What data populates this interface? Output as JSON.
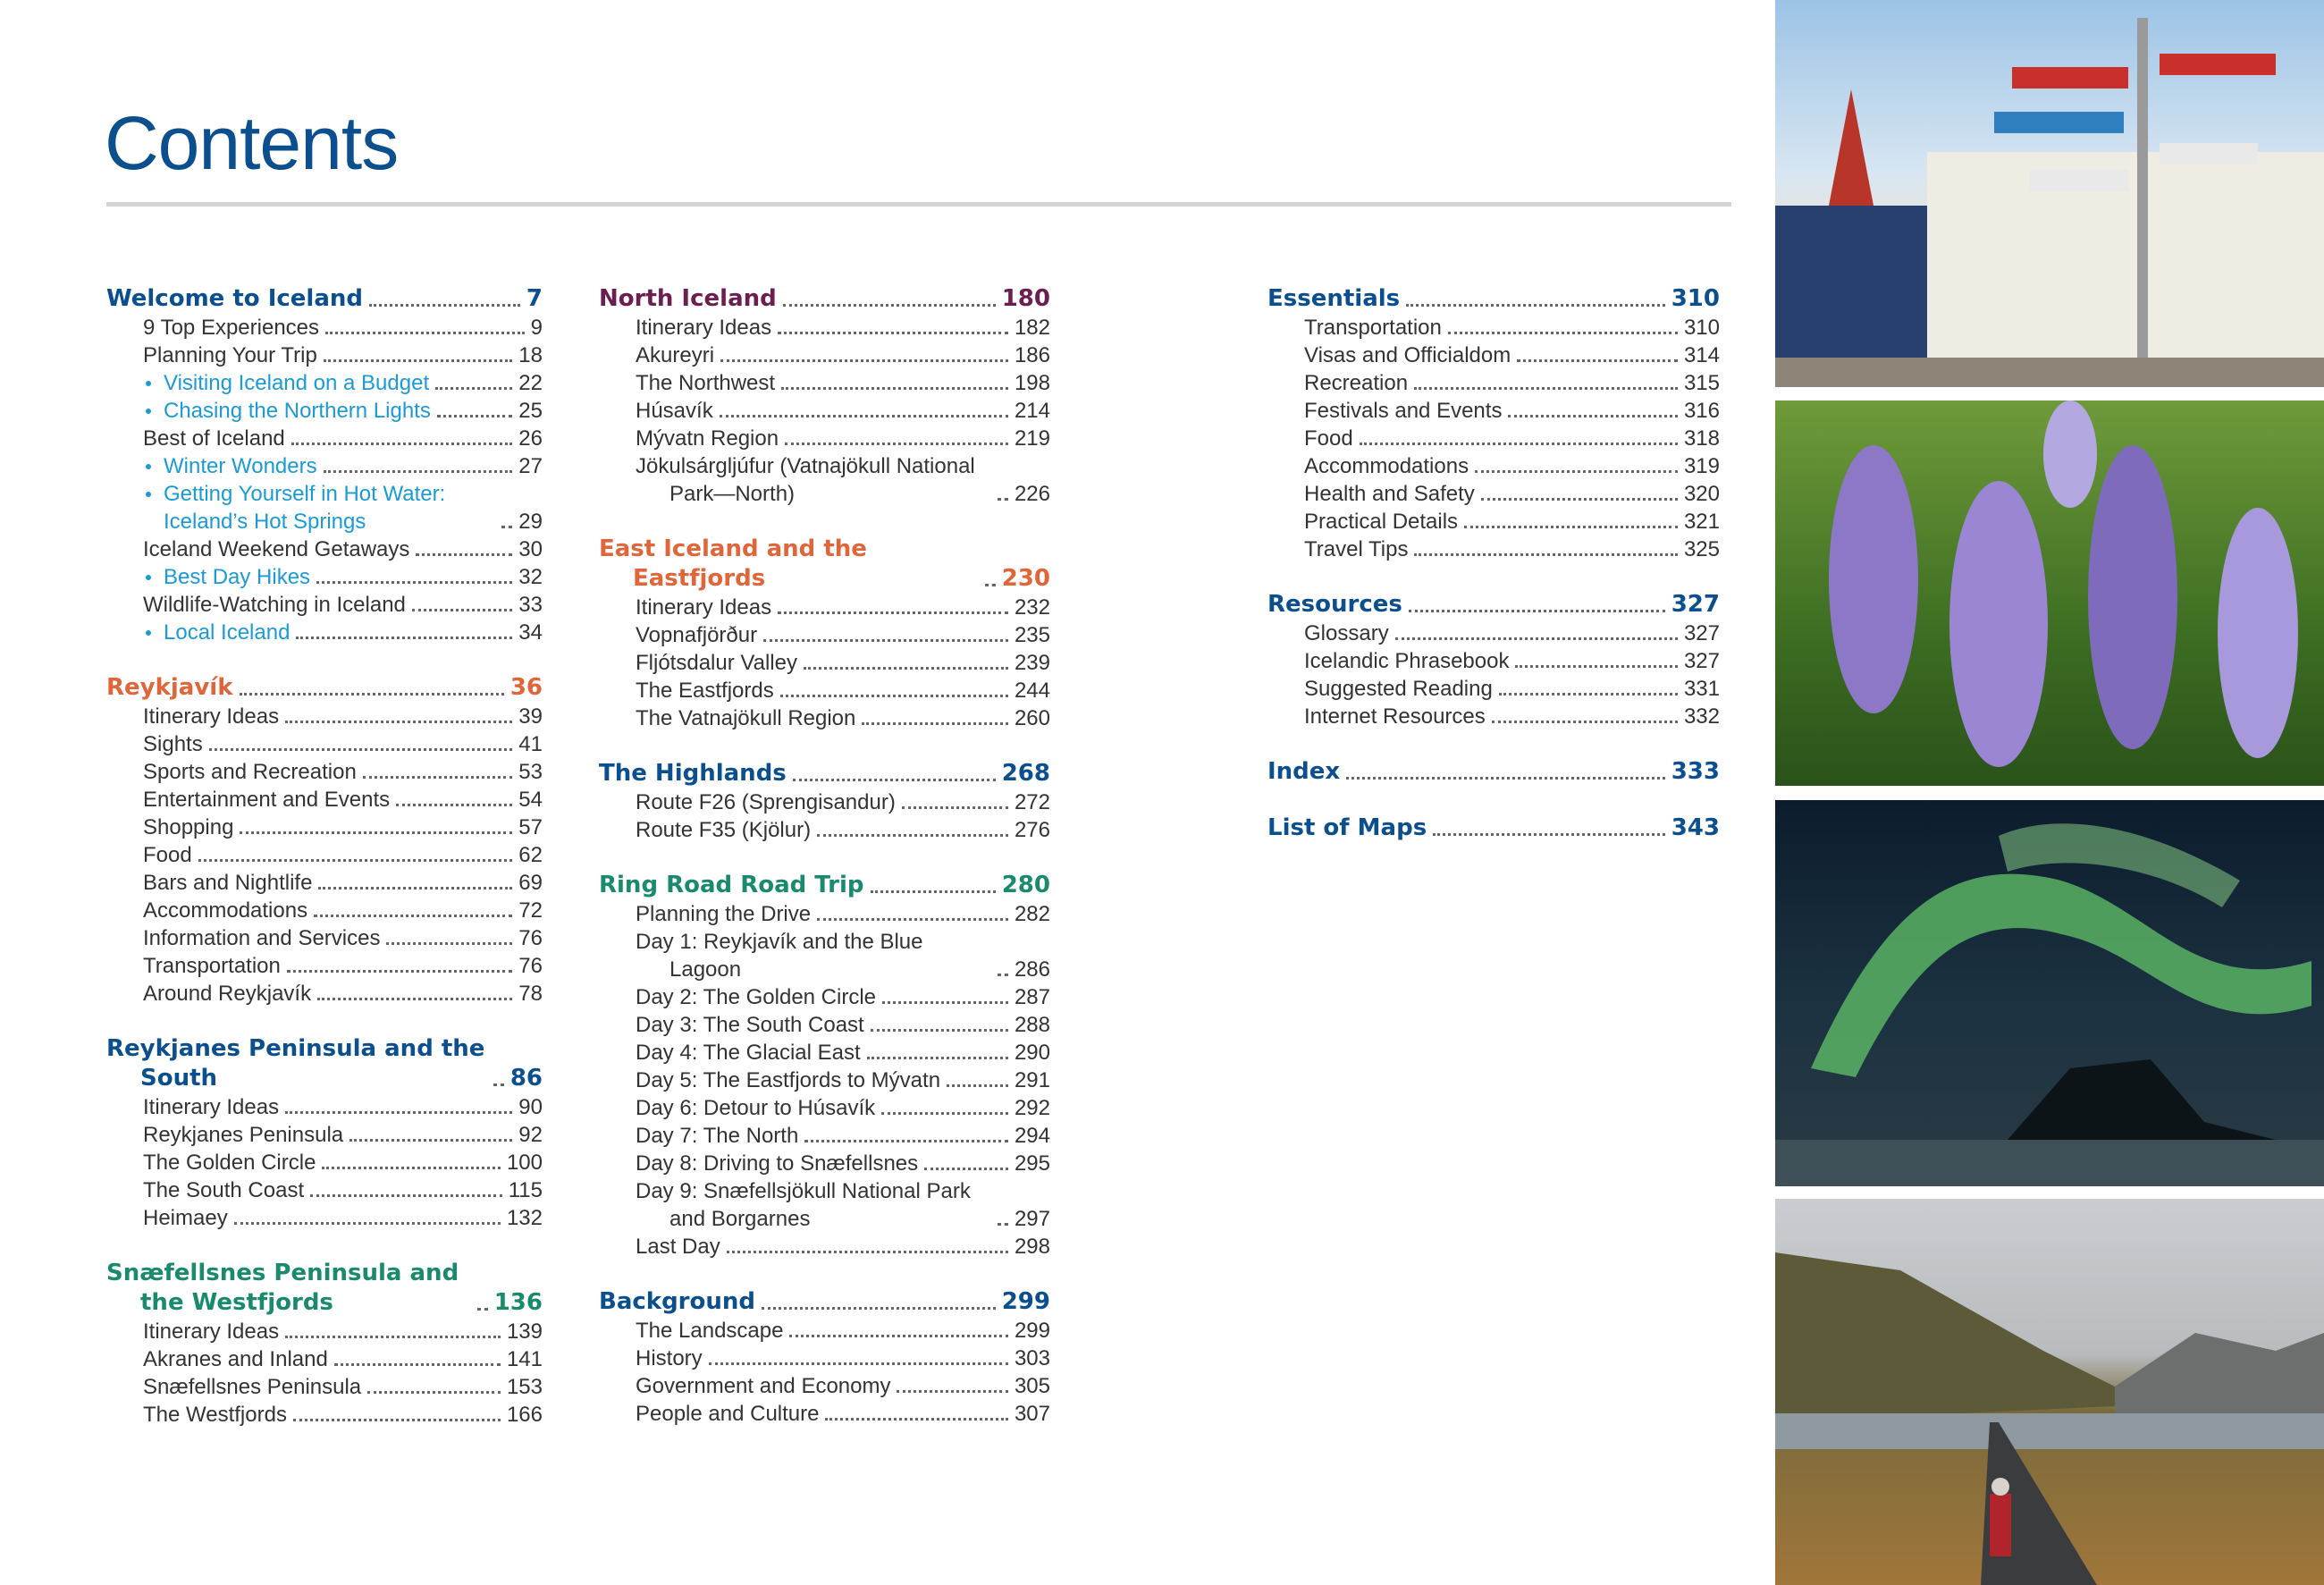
{
  "title": "Contents",
  "columns": [
    {
      "sections": [
        {
          "title": "Welcome to Iceland",
          "page": "7",
          "color": "#0b4f8e",
          "entries": [
            {
              "text": "9 Top Experiences",
              "page": "9"
            },
            {
              "text": "Planning Your Trip",
              "page": "18"
            },
            {
              "text": "Visiting Iceland on a Budget",
              "page": "22",
              "color": "#1a9ad6"
            },
            {
              "text": "Chasing the Northern Lights",
              "page": "25",
              "color": "#1a9ad6"
            },
            {
              "text": "Best of Iceland",
              "page": "26"
            },
            {
              "text": "Winter Wonders",
              "page": "27",
              "color": "#1a9ad6"
            },
            {
              "text": "Getting Yourself in Hot Water: Iceland’s Hot Springs",
              "page": "29",
              "color": "#1a9ad6"
            },
            {
              "text": "Iceland Weekend Getaways",
              "page": "30"
            },
            {
              "text": "Best Day Hikes",
              "page": "32",
              "color": "#1a9ad6"
            },
            {
              "text": "Wildlife-Watching in Iceland",
              "page": "33"
            },
            {
              "text": "Local Iceland",
              "page": "34",
              "color": "#1a9ad6"
            }
          ]
        },
        {
          "title": "Reykjavík",
          "page": "36",
          "color": "#e0663a",
          "entries": [
            {
              "text": "Itinerary Ideas",
              "page": "39"
            },
            {
              "text": "Sights",
              "page": "41"
            },
            {
              "text": "Sports and Recreation",
              "page": "53"
            },
            {
              "text": "Entertainment and Events",
              "page": "54"
            },
            {
              "text": "Shopping",
              "page": "57"
            },
            {
              "text": "Food",
              "page": "62"
            },
            {
              "text": "Bars and Nightlife",
              "page": "69"
            },
            {
              "text": "Accommodations",
              "page": "72"
            },
            {
              "text": "Information and Services",
              "page": "76"
            },
            {
              "text": "Transportation",
              "page": "76"
            },
            {
              "text": "Around Reykjavík",
              "page": "78"
            }
          ]
        },
        {
          "title": "Reykjanes Peninsula and the South",
          "page": "86",
          "color": "#0b4f8e",
          "entries": [
            {
              "text": "Itinerary Ideas",
              "page": "90"
            },
            {
              "text": "Reykjanes Peninsula",
              "page": "92"
            },
            {
              "text": "The Golden Circle",
              "page": "100"
            },
            {
              "text": "The South Coast",
              "page": "115"
            },
            {
              "text": "Heimaey",
              "page": "132"
            }
          ]
        },
        {
          "title": "Snæfellsnes Peninsula and the Westfjords",
          "page": "136",
          "color": "#1a8a6e",
          "entries": [
            {
              "text": "Itinerary Ideas",
              "page": "139"
            },
            {
              "text": "Akranes and Inland",
              "page": "141"
            },
            {
              "text": "Snæfellsnes Peninsula",
              "page": "153"
            },
            {
              "text": "The Westfjords",
              "page": "166"
            }
          ]
        }
      ]
    },
    {
      "sections": [
        {
          "title": "North Iceland",
          "page": "180",
          "color": "#6b1e4f",
          "entries": [
            {
              "text": "Itinerary Ideas",
              "page": "182"
            },
            {
              "text": "Akureyri",
              "page": "186"
            },
            {
              "text": "The Northwest",
              "page": "198"
            },
            {
              "text": "Húsavík",
              "page": "214"
            },
            {
              "text": "Mývatn Region",
              "page": "219"
            },
            {
              "text": "Jökulsárgljúfur (Vatnajökull National Park—North)",
              "page": "226"
            }
          ]
        },
        {
          "title": "East Iceland and the Eastfjords",
          "page": "230",
          "color": "#e0663a",
          "entries": [
            {
              "text": "Itinerary Ideas",
              "page": "232"
            },
            {
              "text": "Vopnafjörður",
              "page": "235"
            },
            {
              "text": "Fljótsdalur Valley",
              "page": "239"
            },
            {
              "text": "The Eastfjords",
              "page": "244"
            },
            {
              "text": "The Vatnajökull Region",
              "page": "260"
            }
          ]
        },
        {
          "title": "The Highlands",
          "page": "268",
          "color": "#0b4f8e",
          "entries": [
            {
              "text": "Route F26 (Sprengisandur)",
              "page": "272"
            },
            {
              "text": "Route F35 (Kjölur)",
              "page": "276"
            }
          ]
        },
        {
          "title": "Ring Road Road Trip",
          "page": "280",
          "color": "#1a8a6e",
          "entries": [
            {
              "text": "Planning the Drive",
              "page": "282"
            },
            {
              "text": "Day 1: Reykjavík and the Blue Lagoon",
              "page": "286"
            },
            {
              "text": "Day 2: The Golden Circle",
              "page": "287"
            },
            {
              "text": "Day 3: The South Coast",
              "page": "288"
            },
            {
              "text": "Day 4: The Glacial East",
              "page": "290"
            },
            {
              "text": "Day 5: The Eastfjords to Mývatn",
              "page": "291"
            },
            {
              "text": "Day 6: Detour to Húsavík",
              "page": "292"
            },
            {
              "text": "Day 7: The North",
              "page": "294"
            },
            {
              "text": "Day 8: Driving to Snæfellsnes",
              "page": "295"
            },
            {
              "text": "Day 9: Snæfellsjökull National Park and Borgarnes",
              "page": "297"
            },
            {
              "text": "Last Day",
              "page": "298"
            }
          ]
        },
        {
          "title": "Background",
          "page": "299",
          "color": "#0b4f8e",
          "entries": [
            {
              "text": "The Landscape",
              "page": "299"
            },
            {
              "text": "History",
              "page": "303"
            },
            {
              "text": "Government and Economy",
              "page": "305"
            },
            {
              "text": "People and Culture",
              "page": "307"
            }
          ]
        }
      ]
    },
    {
      "sections": [
        {
          "title": "Essentials",
          "page": "310",
          "color": "#0b4f8e",
          "entries": [
            {
              "text": "Transportation",
              "page": "310"
            },
            {
              "text": "Visas and Officialdom",
              "page": "314"
            },
            {
              "text": "Recreation",
              "page": "315"
            },
            {
              "text": "Festivals and Events",
              "page": "316"
            },
            {
              "text": "Food",
              "page": "318"
            },
            {
              "text": "Accommodations",
              "page": "319"
            },
            {
              "text": "Health and Safety",
              "page": "320"
            },
            {
              "text": "Practical Details",
              "page": "321"
            },
            {
              "text": "Travel Tips",
              "page": "325"
            }
          ]
        },
        {
          "title": "Resources",
          "page": "327",
          "color": "#0b4f8e",
          "entries": [
            {
              "text": "Glossary",
              "page": "327"
            },
            {
              "text": "Icelandic Phrasebook",
              "page": "327"
            },
            {
              "text": "Suggested Reading",
              "page": "331"
            },
            {
              "text": "Internet Resources",
              "page": "332"
            }
          ]
        },
        {
          "title": "Index",
          "page": "333",
          "color": "#0b4f8e",
          "entries": []
        },
        {
          "title": "List of Maps",
          "page": "343",
          "color": "#0b4f8e",
          "entries": []
        }
      ]
    }
  ]
}
